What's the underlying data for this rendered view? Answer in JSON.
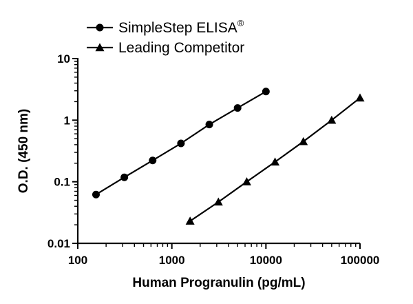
{
  "chart_data": {
    "type": "scatter",
    "xlabel": "Human Progranulin (pg/mL)",
    "ylabel": "O.D. (450 nm)",
    "x_scale": "log",
    "y_scale": "log",
    "xlim": [
      100,
      100000
    ],
    "ylim": [
      0.01,
      10
    ],
    "x_ticks": [
      "100",
      "1000",
      "10000",
      "100000"
    ],
    "y_ticks": [
      "0.01",
      "0.1",
      "1",
      "10"
    ],
    "grid": false,
    "legend_position": "top-left",
    "series": [
      {
        "name": "SimpleStep ELISA",
        "name_superscript": "®",
        "marker": "circle",
        "color": "#000000",
        "x": [
          156.25,
          312.5,
          625,
          1250,
          2500,
          5000,
          10000
        ],
        "y": [
          0.062,
          0.118,
          0.222,
          0.42,
          0.85,
          1.58,
          2.92
        ]
      },
      {
        "name": "Leading Competitor",
        "marker": "triangle",
        "color": "#000000",
        "x": [
          1562.5,
          3125,
          6250,
          12500,
          25000,
          50000,
          100000
        ],
        "y": [
          0.023,
          0.047,
          0.1,
          0.21,
          0.45,
          1.0,
          2.3
        ]
      }
    ]
  }
}
